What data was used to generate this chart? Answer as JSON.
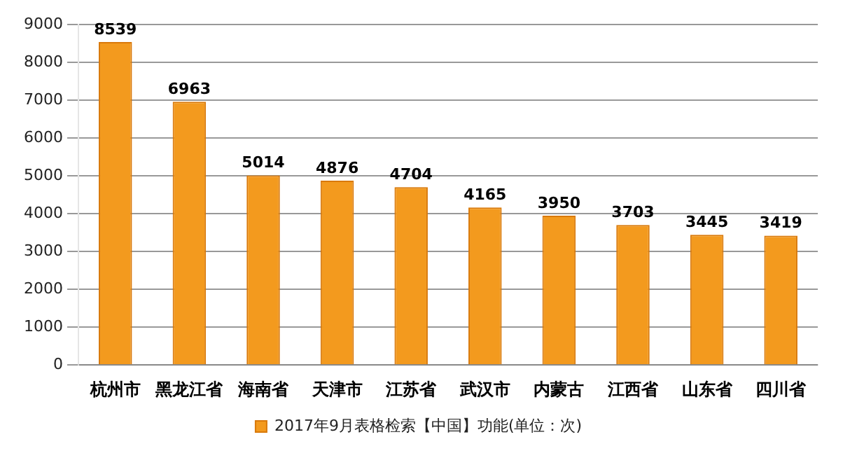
{
  "chart_data": {
    "type": "bar",
    "categories": [
      "杭州市",
      "黑龙江省",
      "海南省",
      "天津市",
      "江苏省",
      "武汉市",
      "内蒙古",
      "江西省",
      "山东省",
      "四川省"
    ],
    "series": [
      {
        "name": "2017年9月表格检索【中国】功能(单位：次)",
        "color": "#f39a1e",
        "values": [
          8539,
          6963,
          5014,
          4876,
          4704,
          4165,
          3950,
          3703,
          3445,
          3419
        ]
      }
    ],
    "ylim": [
      0,
      9000
    ],
    "yticks": [
      0,
      1000,
      2000,
      3000,
      4000,
      5000,
      6000,
      7000,
      8000,
      9000
    ],
    "grid": "y",
    "legend": "bottom",
    "data_labels": true
  }
}
